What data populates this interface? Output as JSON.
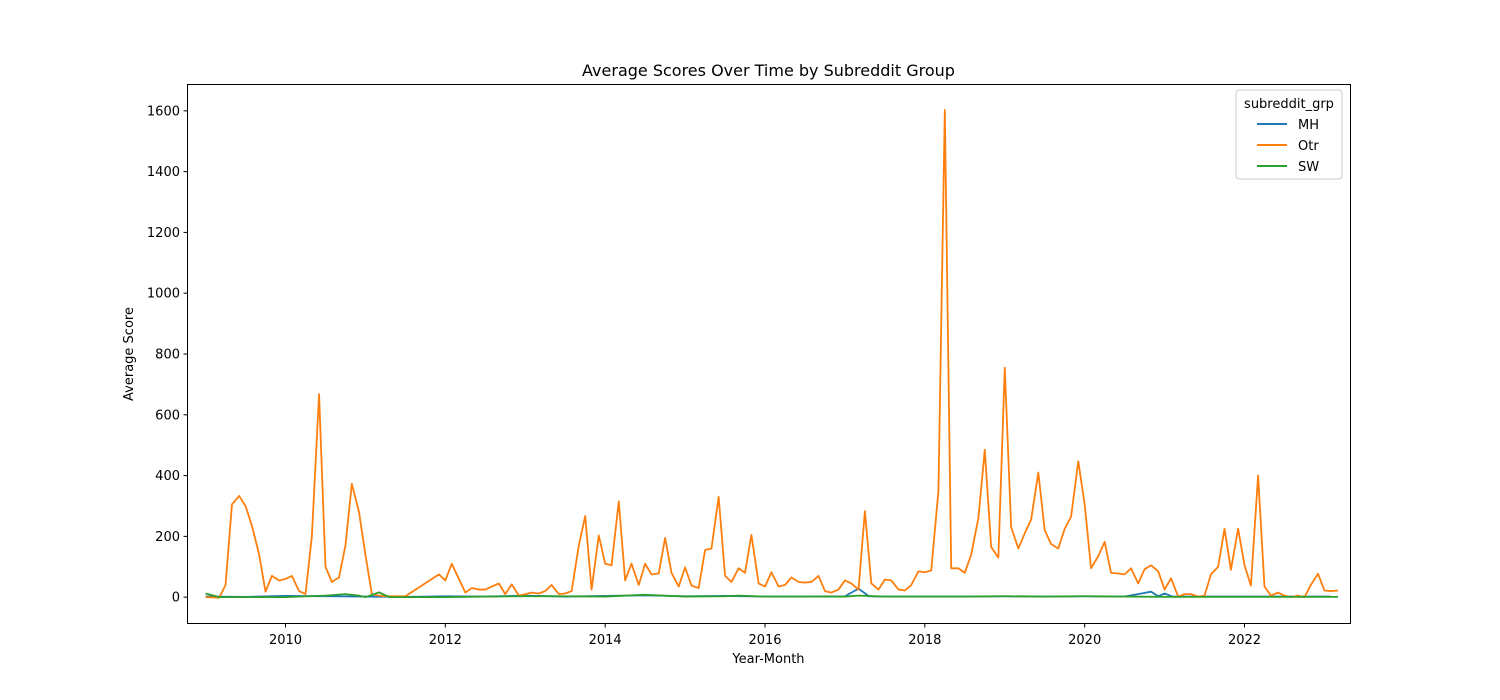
{
  "chart_data": {
    "type": "line",
    "title": "Average Scores Over Time by Subreddit Group",
    "xlabel": "Year-Month",
    "ylabel": "Average Score",
    "xlim": [
      2008.78,
      2023.32
    ],
    "ylim": [
      -85,
      1685
    ],
    "x_ticks": [
      2010,
      2012,
      2014,
      2016,
      2018,
      2020,
      2022
    ],
    "y_ticks": [
      0,
      200,
      400,
      600,
      800,
      1000,
      1200,
      1400,
      1600
    ],
    "grid": false,
    "legend": {
      "title": "subreddit_grp",
      "placement": "top-right"
    },
    "series": [
      {
        "name": "MH",
        "color": "#1f77b4",
        "points": [
          [
            2009.0,
            2
          ],
          [
            2009.5,
            1
          ],
          [
            2010.0,
            4
          ],
          [
            2010.5,
            3
          ],
          [
            2011.0,
            2
          ],
          [
            2011.5,
            1
          ],
          [
            2012.0,
            3
          ],
          [
            2012.5,
            2
          ],
          [
            2013.0,
            5
          ],
          [
            2013.5,
            2
          ],
          [
            2014.0,
            4
          ],
          [
            2014.5,
            6
          ],
          [
            2015.0,
            3
          ],
          [
            2015.5,
            4
          ],
          [
            2016.0,
            2
          ],
          [
            2016.5,
            2
          ],
          [
            2017.0,
            3
          ],
          [
            2017.17,
            28
          ],
          [
            2017.3,
            3
          ],
          [
            2017.5,
            2
          ],
          [
            2018.0,
            2
          ],
          [
            2018.5,
            2
          ],
          [
            2019.0,
            3
          ],
          [
            2019.5,
            2
          ],
          [
            2020.0,
            3
          ],
          [
            2020.5,
            2
          ],
          [
            2020.83,
            18
          ],
          [
            2020.92,
            3
          ],
          [
            2021.0,
            12
          ],
          [
            2021.1,
            2
          ],
          [
            2021.5,
            2
          ],
          [
            2022.0,
            2
          ],
          [
            2022.5,
            2
          ],
          [
            2023.08,
            2
          ]
        ]
      },
      {
        "name": "Otr",
        "color": "#ff7f0e",
        "points": [
          [
            2009.0,
            0
          ],
          [
            2009.17,
            -2
          ],
          [
            2009.25,
            40
          ],
          [
            2009.33,
            305
          ],
          [
            2009.42,
            333
          ],
          [
            2009.5,
            300
          ],
          [
            2009.58,
            235
          ],
          [
            2009.67,
            140
          ],
          [
            2009.75,
            18
          ],
          [
            2009.83,
            70
          ],
          [
            2009.92,
            55
          ],
          [
            2010.0,
            60
          ],
          [
            2010.08,
            70
          ],
          [
            2010.17,
            20
          ],
          [
            2010.25,
            10
          ],
          [
            2010.33,
            200
          ],
          [
            2010.42,
            668
          ],
          [
            2010.5,
            100
          ],
          [
            2010.58,
            50
          ],
          [
            2010.67,
            65
          ],
          [
            2010.75,
            170
          ],
          [
            2010.83,
            373
          ],
          [
            2010.92,
            280
          ],
          [
            2011.0,
            140
          ],
          [
            2011.08,
            10
          ],
          [
            2011.17,
            5
          ],
          [
            2011.25,
            3
          ],
          [
            2011.5,
            3
          ],
          [
            2011.92,
            75
          ],
          [
            2012.0,
            55
          ],
          [
            2012.08,
            110
          ],
          [
            2012.17,
            60
          ],
          [
            2012.25,
            15
          ],
          [
            2012.33,
            30
          ],
          [
            2012.42,
            25
          ],
          [
            2012.5,
            25
          ],
          [
            2012.58,
            35
          ],
          [
            2012.67,
            45
          ],
          [
            2012.75,
            10
          ],
          [
            2012.83,
            42
          ],
          [
            2012.92,
            5
          ],
          [
            2013.0,
            10
          ],
          [
            2013.08,
            15
          ],
          [
            2013.17,
            12
          ],
          [
            2013.25,
            20
          ],
          [
            2013.33,
            40
          ],
          [
            2013.42,
            10
          ],
          [
            2013.5,
            12
          ],
          [
            2013.58,
            20
          ],
          [
            2013.67,
            170
          ],
          [
            2013.75,
            267
          ],
          [
            2013.83,
            25
          ],
          [
            2013.92,
            203
          ],
          [
            2014.0,
            110
          ],
          [
            2014.08,
            105
          ],
          [
            2014.17,
            315
          ],
          [
            2014.25,
            55
          ],
          [
            2014.33,
            110
          ],
          [
            2014.42,
            40
          ],
          [
            2014.5,
            110
          ],
          [
            2014.58,
            75
          ],
          [
            2014.67,
            78
          ],
          [
            2014.75,
            195
          ],
          [
            2014.83,
            80
          ],
          [
            2014.92,
            35
          ],
          [
            2015.0,
            98
          ],
          [
            2015.08,
            38
          ],
          [
            2015.17,
            30
          ],
          [
            2015.25,
            155
          ],
          [
            2015.33,
            160
          ],
          [
            2015.42,
            330
          ],
          [
            2015.5,
            70
          ],
          [
            2015.58,
            50
          ],
          [
            2015.67,
            95
          ],
          [
            2015.75,
            80
          ],
          [
            2015.83,
            205
          ],
          [
            2015.92,
            45
          ],
          [
            2016.0,
            35
          ],
          [
            2016.08,
            82
          ],
          [
            2016.17,
            35
          ],
          [
            2016.25,
            40
          ],
          [
            2016.33,
            65
          ],
          [
            2016.42,
            50
          ],
          [
            2016.5,
            48
          ],
          [
            2016.58,
            50
          ],
          [
            2016.67,
            70
          ],
          [
            2016.75,
            20
          ],
          [
            2016.83,
            15
          ],
          [
            2016.92,
            25
          ],
          [
            2017.0,
            55
          ],
          [
            2017.08,
            45
          ],
          [
            2017.17,
            25
          ],
          [
            2017.25,
            283
          ],
          [
            2017.33,
            45
          ],
          [
            2017.42,
            25
          ],
          [
            2017.5,
            58
          ],
          [
            2017.58,
            55
          ],
          [
            2017.67,
            25
          ],
          [
            2017.75,
            22
          ],
          [
            2017.83,
            40
          ],
          [
            2017.92,
            85
          ],
          [
            2018.0,
            82
          ],
          [
            2018.08,
            88
          ],
          [
            2018.17,
            350
          ],
          [
            2018.25,
            1603
          ],
          [
            2018.33,
            95
          ],
          [
            2018.42,
            95
          ],
          [
            2018.5,
            80
          ],
          [
            2018.58,
            140
          ],
          [
            2018.67,
            260
          ],
          [
            2018.75,
            485
          ],
          [
            2018.83,
            165
          ],
          [
            2018.92,
            130
          ],
          [
            2019.0,
            755
          ],
          [
            2019.08,
            230
          ],
          [
            2019.17,
            160
          ],
          [
            2019.25,
            210
          ],
          [
            2019.33,
            255
          ],
          [
            2019.42,
            410
          ],
          [
            2019.5,
            220
          ],
          [
            2019.58,
            175
          ],
          [
            2019.67,
            160
          ],
          [
            2019.75,
            225
          ],
          [
            2019.83,
            265
          ],
          [
            2019.92,
            447
          ],
          [
            2020.0,
            305
          ],
          [
            2020.08,
            95
          ],
          [
            2020.17,
            135
          ],
          [
            2020.25,
            182
          ],
          [
            2020.33,
            80
          ],
          [
            2020.42,
            78
          ],
          [
            2020.5,
            75
          ],
          [
            2020.58,
            95
          ],
          [
            2020.67,
            45
          ],
          [
            2020.75,
            92
          ],
          [
            2020.83,
            105
          ],
          [
            2020.92,
            85
          ],
          [
            2021.0,
            25
          ],
          [
            2021.08,
            62
          ],
          [
            2021.17,
            2
          ],
          [
            2021.25,
            10
          ],
          [
            2021.33,
            10
          ],
          [
            2021.42,
            2
          ],
          [
            2021.5,
            5
          ],
          [
            2021.58,
            75
          ],
          [
            2021.67,
            100
          ],
          [
            2021.75,
            225
          ],
          [
            2021.83,
            90
          ],
          [
            2021.92,
            225
          ],
          [
            2022.0,
            105
          ],
          [
            2022.08,
            38
          ],
          [
            2022.17,
            400
          ],
          [
            2022.25,
            35
          ],
          [
            2022.33,
            5
          ],
          [
            2022.42,
            15
          ],
          [
            2022.5,
            5
          ],
          [
            2022.58,
            0
          ],
          [
            2022.67,
            5
          ],
          [
            2022.75,
            0
          ],
          [
            2022.83,
            40
          ],
          [
            2022.92,
            77
          ],
          [
            2023.0,
            22
          ],
          [
            2023.08,
            20
          ],
          [
            2023.17,
            22
          ]
        ]
      },
      {
        "name": "SW",
        "color": "#2ca02c",
        "points": [
          [
            2009.0,
            12
          ],
          [
            2009.17,
            0
          ],
          [
            2009.5,
            0
          ],
          [
            2010.0,
            0
          ],
          [
            2010.5,
            5
          ],
          [
            2010.75,
            10
          ],
          [
            2010.92,
            5
          ],
          [
            2011.0,
            0
          ],
          [
            2011.17,
            16
          ],
          [
            2011.3,
            0
          ],
          [
            2011.5,
            0
          ],
          [
            2012.0,
            0
          ],
          [
            2012.5,
            2
          ],
          [
            2013.0,
            3
          ],
          [
            2013.5,
            3
          ],
          [
            2014.0,
            2
          ],
          [
            2014.5,
            8
          ],
          [
            2015.0,
            2
          ],
          [
            2015.5,
            3
          ],
          [
            2015.67,
            5
          ],
          [
            2016.0,
            2
          ],
          [
            2016.5,
            2
          ],
          [
            2017.0,
            2
          ],
          [
            2017.17,
            5
          ],
          [
            2017.5,
            2
          ],
          [
            2018.0,
            2
          ],
          [
            2018.5,
            2
          ],
          [
            2019.0,
            3
          ],
          [
            2019.5,
            2
          ],
          [
            2020.0,
            3
          ],
          [
            2020.5,
            2
          ],
          [
            2021.0,
            1
          ],
          [
            2021.5,
            1
          ],
          [
            2022.0,
            1
          ],
          [
            2022.5,
            1
          ],
          [
            2023.17,
            1
          ]
        ]
      }
    ]
  }
}
